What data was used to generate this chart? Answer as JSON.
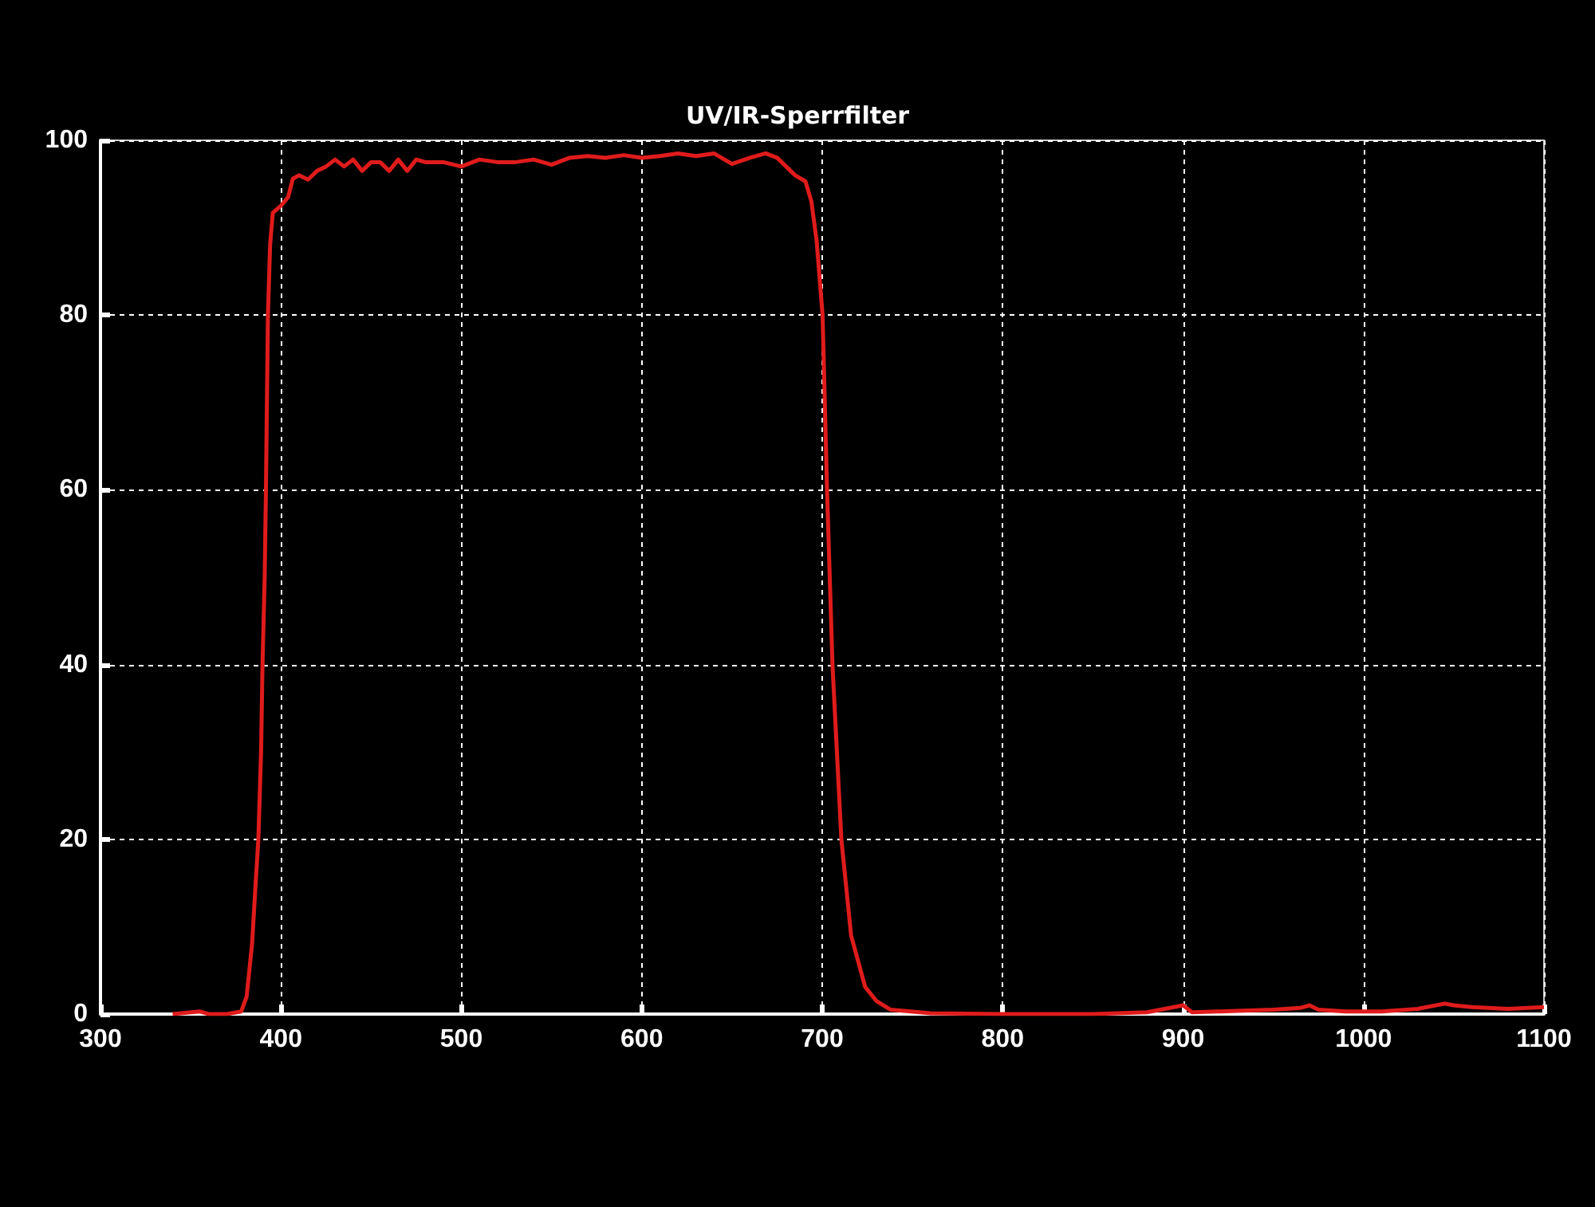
{
  "chart_data": {
    "type": "line",
    "title": "UV/IR-Sperrfilter",
    "xlim": [
      300,
      1100
    ],
    "xticks": [
      300,
      400,
      500,
      600,
      700,
      800,
      900,
      1000,
      1100
    ],
    "ylim": [
      0,
      100
    ],
    "yticks": [
      0,
      20,
      40,
      60,
      80,
      100
    ],
    "grid": true,
    "marker": "none",
    "line_style": "solid",
    "series": [
      {
        "color": "#e01b1b",
        "x": [
          340,
          355,
          360,
          370,
          378,
          381,
          384,
          386,
          387.5,
          389,
          389.8,
          391,
          391.7,
          392.8,
          394,
          395.5,
          400,
          404,
          406.6,
          410,
          415,
          420,
          425,
          430,
          435,
          440,
          445,
          450,
          455,
          460,
          465,
          470,
          475,
          480,
          490,
          500,
          510,
          520,
          530,
          540,
          550,
          560,
          570,
          580,
          590,
          600,
          610,
          620,
          630,
          640,
          650,
          660,
          668.6,
          675,
          680,
          685,
          690.7,
          694,
          696.9,
          700.2,
          702.7,
          705.7,
          710.6,
          716,
          723.8,
          730,
          738,
          760,
          800,
          850,
          880,
          895,
          900,
          905,
          920,
          950,
          965,
          970,
          975,
          990,
          1010,
          1030,
          1045,
          1050,
          1060,
          1080,
          1100
        ],
        "values": [
          0,
          0.3,
          0,
          0,
          0.3,
          2,
          8,
          15,
          20,
          30,
          40,
          50,
          60,
          80,
          88,
          91.7,
          92.5,
          93.5,
          95.6,
          96,
          95.5,
          96.5,
          97,
          97.8,
          97,
          97.8,
          96.5,
          97.5,
          97.5,
          96.5,
          97.8,
          96.5,
          97.8,
          97.5,
          97.5,
          97,
          97.8,
          97.5,
          97.5,
          97.8,
          97.2,
          98,
          98.2,
          98,
          98.3,
          98,
          98.2,
          98.5,
          98.2,
          98.5,
          97.3,
          98,
          98.5,
          98,
          97,
          96,
          95.3,
          93,
          88.5,
          80,
          59.7,
          39.9,
          20,
          9,
          3.1,
          1.5,
          0.5,
          0.1,
          0,
          0,
          0.2,
          0.8,
          1,
          0.2,
          0.3,
          0.5,
          0.7,
          1,
          0.5,
          0.3,
          0.3,
          0.6,
          1.2,
          1,
          0.8,
          0.6,
          0.8
        ]
      }
    ]
  }
}
